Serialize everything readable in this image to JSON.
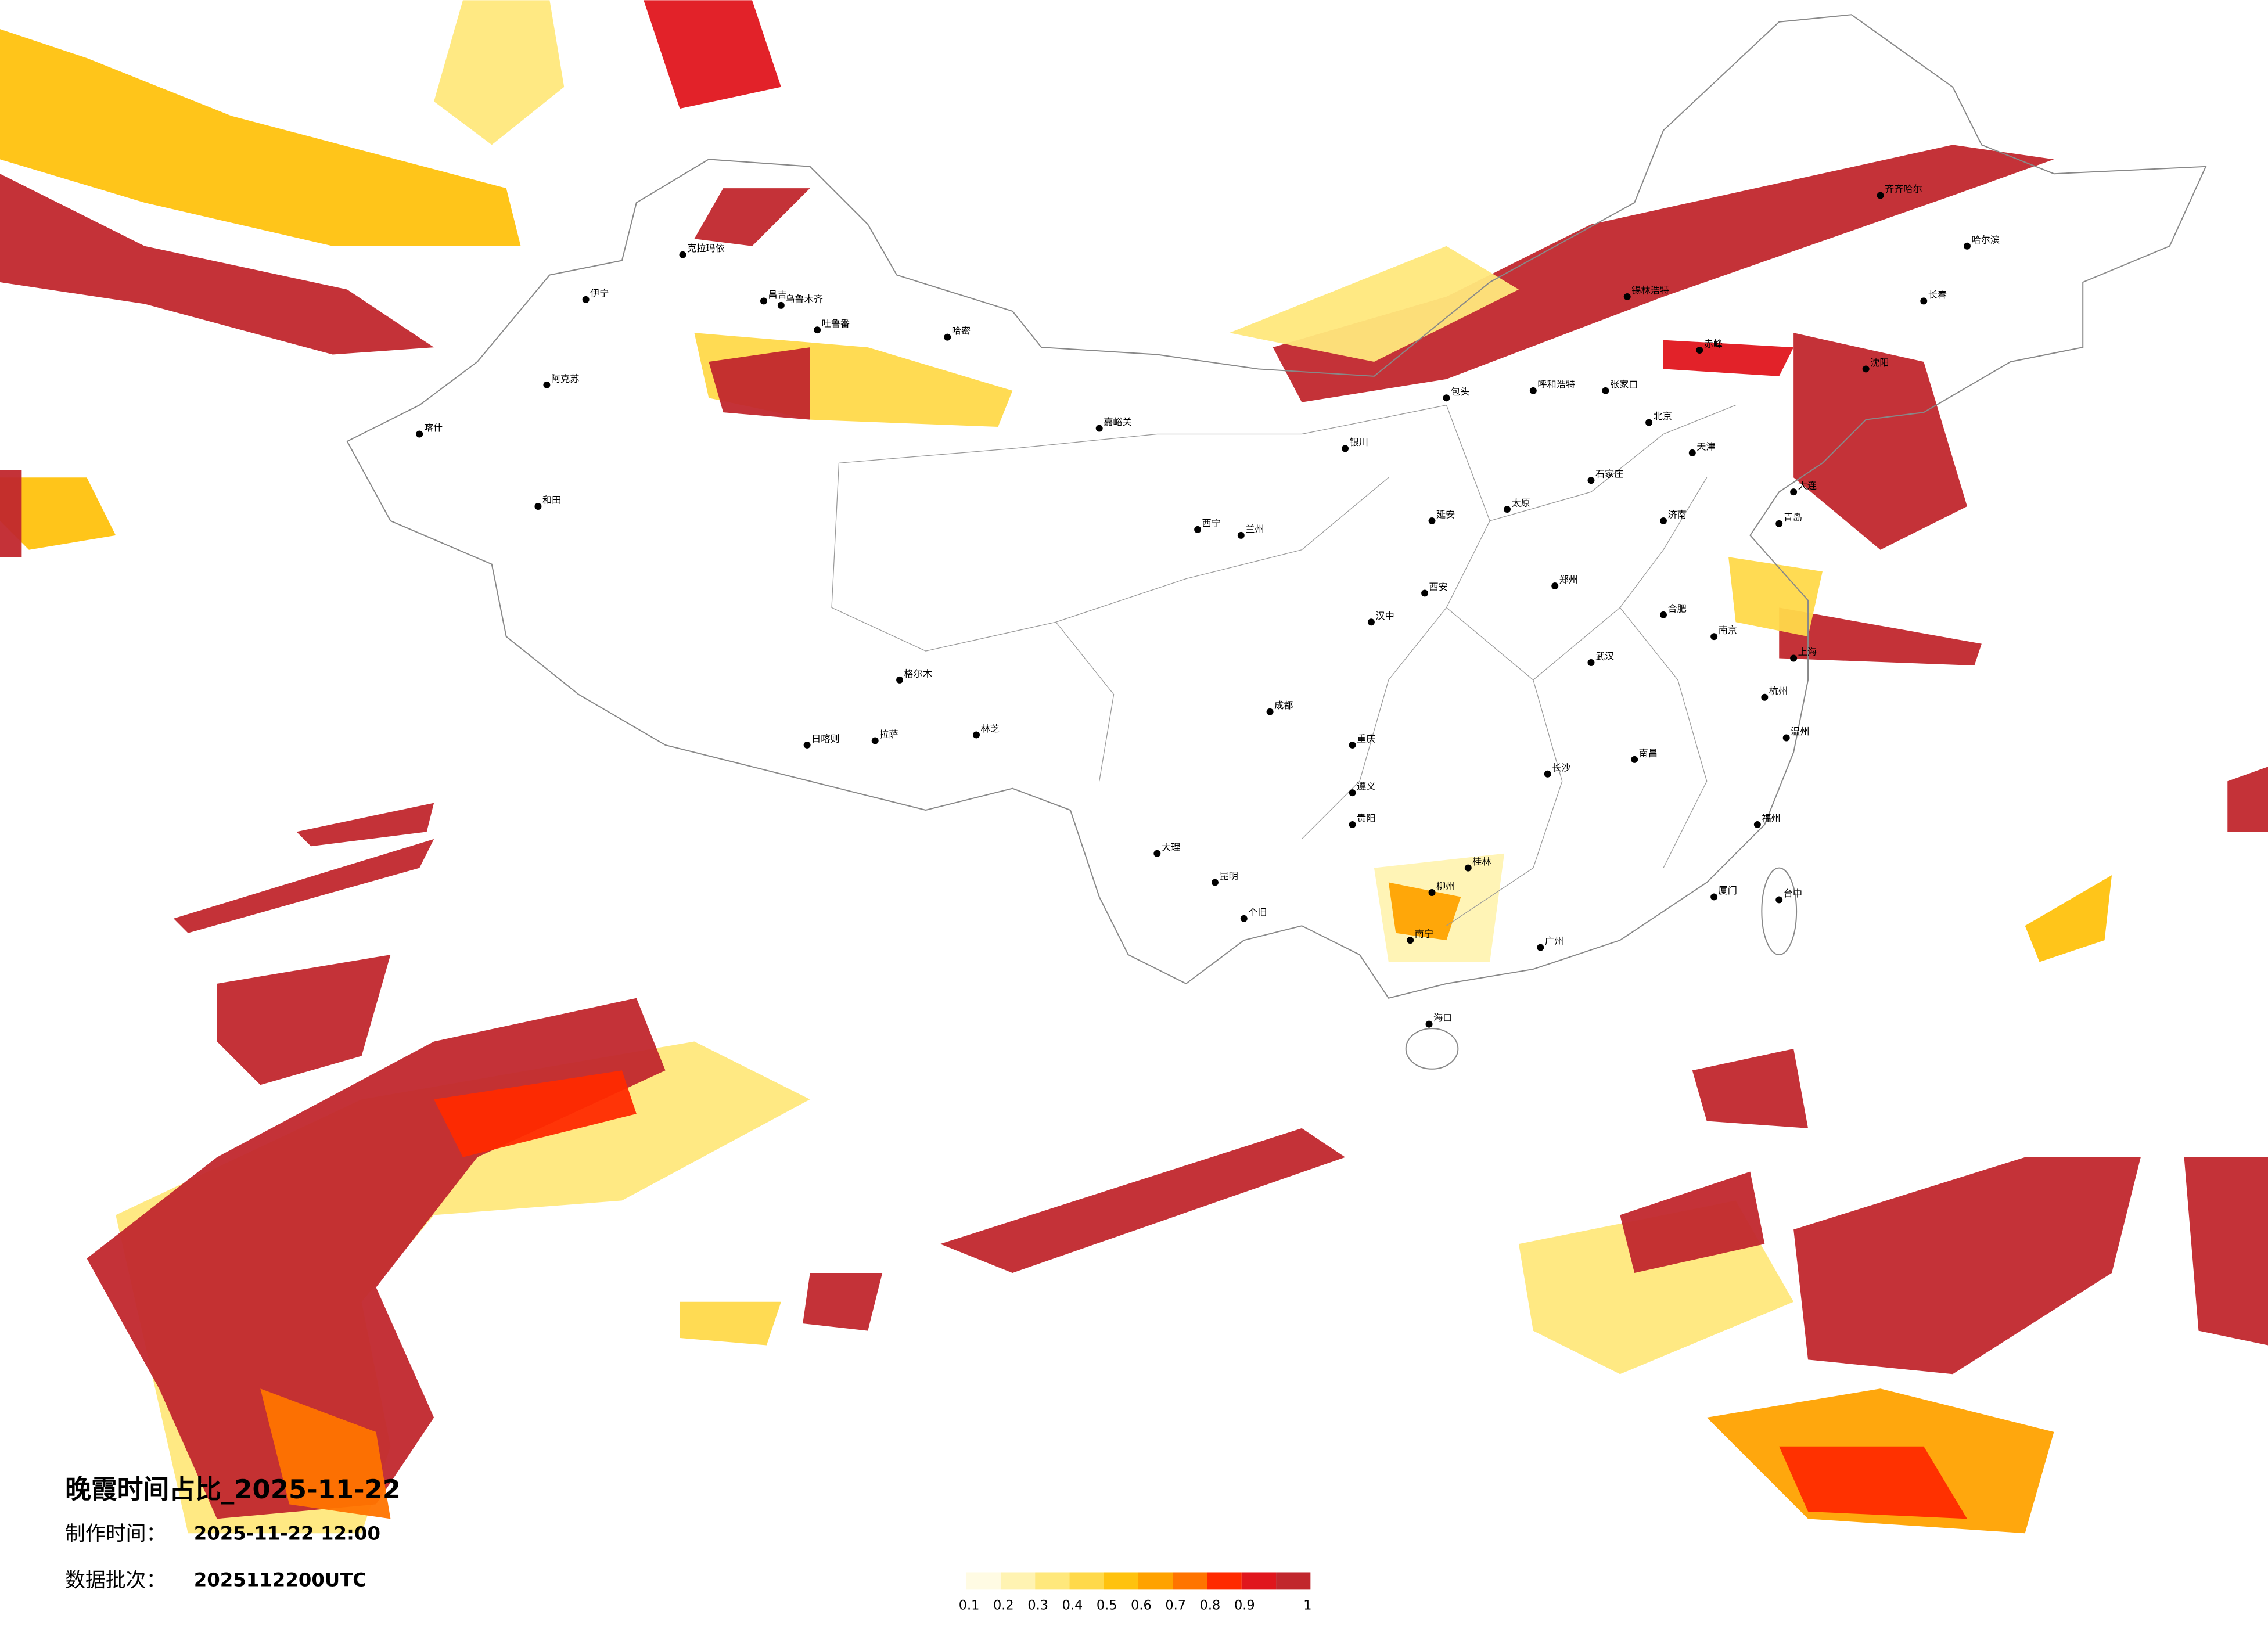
{
  "map": {
    "title": "晚霞时间占比_2025-11-22",
    "made_label": "制作时间：",
    "made_value": "2025-11-22 12:00",
    "batch_label": "数据批次：",
    "batch_value": "2025112200UTC",
    "legend": {
      "values": [
        0.1,
        0.2,
        0.3,
        0.4,
        0.5,
        0.6,
        0.7,
        0.8,
        0.9,
        1
      ],
      "colors": [
        "#fffbe3",
        "#fff3b2",
        "#ffe87c",
        "#ffd94a",
        "#ffc20e",
        "#ffa200",
        "#ff7400",
        "#ff2a00",
        "#e0161d",
        "#c1272d"
      ]
    },
    "cities": [
      "伊宁",
      "克拉玛依",
      "昌吉",
      "乌鲁木齐",
      "吐鲁番",
      "哈密",
      "阿克苏",
      "喀什",
      "和田",
      "嘉峪关",
      "格尔木",
      "拉萨",
      "日喀则",
      "林芝",
      "西宁",
      "兰州",
      "银川",
      "呼和浩特",
      "包头",
      "北京",
      "天津",
      "石家庄",
      "太原",
      "济南",
      "青岛",
      "郑州",
      "西安",
      "成都",
      "重庆",
      "武汉",
      "南京",
      "上海",
      "杭州",
      "长沙",
      "南昌",
      "福州",
      "贵阳",
      "昆明",
      "南宁",
      "广州",
      "海口",
      "台中",
      "哈尔滨",
      "长春",
      "沈阳",
      "齐齐哈尔",
      "大连",
      "锡林浩特",
      "张家口",
      "赤峰",
      "延安",
      "合肥",
      "温州",
      "厦门",
      "桂林",
      "柳州",
      "遵义",
      "大理",
      "个旧",
      "汉中"
    ]
  }
}
